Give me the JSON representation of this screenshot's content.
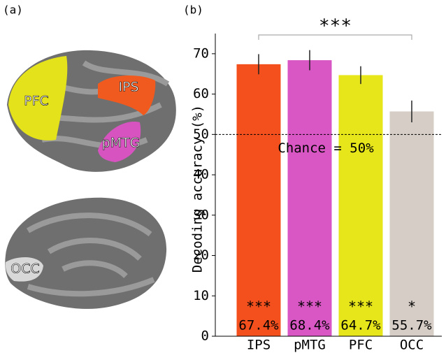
{
  "brain": {
    "panel_label": "(a)",
    "regions": [
      "PFC",
      "IPS",
      "pMTG",
      "OCC"
    ]
  },
  "chart_data": {
    "type": "bar",
    "panel_label": "(b)",
    "categories": [
      "IPS",
      "pMTG",
      "PFC",
      "OCC"
    ],
    "values": [
      67.4,
      68.4,
      64.7,
      55.7
    ],
    "value_labels": [
      "67.4%",
      "68.4%",
      "64.7%",
      "55.7%"
    ],
    "errors": [
      2.5,
      2.5,
      2.2,
      2.7
    ],
    "colors": [
      "#f4501e",
      "#d957c4",
      "#e6e61a",
      "#d6cdc6"
    ],
    "significance": [
      "***",
      "***",
      "***",
      "*"
    ],
    "ylabel": "Decoding accuracy (%)",
    "ylim": [
      0,
      75
    ],
    "yticks": [
      0,
      10,
      20,
      30,
      40,
      50,
      60,
      70
    ],
    "chance": {
      "value": 50,
      "label": "Chance = 50%"
    },
    "bracket_label": "***"
  }
}
